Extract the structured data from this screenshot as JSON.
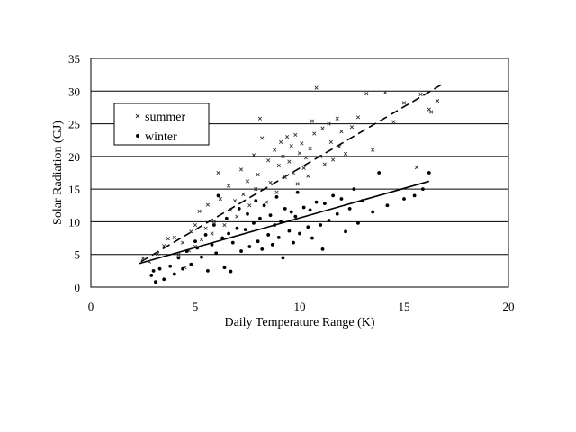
{
  "chart_data": {
    "type": "scatter",
    "xlabel": "Daily Temperature Range (K)",
    "ylabel": "Solar Radiation (GJ)",
    "xlim": [
      0,
      20
    ],
    "ylim": [
      0,
      35
    ],
    "xticks": [
      0,
      5,
      10,
      15,
      20
    ],
    "yticks": [
      0,
      5,
      10,
      15,
      20,
      25,
      30,
      35
    ],
    "grid": "horizontal",
    "legend_position": "top-left",
    "series": [
      {
        "name": "summer",
        "marker": "x",
        "color": "#333333",
        "trendline": {
          "style": "dashed",
          "x": [
            2.4,
            16.8
          ],
          "y": [
            3.9,
            31.0
          ]
        },
        "points": [
          [
            2.5,
            4.4
          ],
          [
            2.8,
            3.9
          ],
          [
            3.2,
            5.1
          ],
          [
            3.5,
            6.3
          ],
          [
            3.7,
            7.4
          ],
          [
            4.0,
            7.6
          ],
          [
            4.2,
            5.0
          ],
          [
            4.4,
            6.8
          ],
          [
            4.5,
            3.0
          ],
          [
            4.7,
            5.6
          ],
          [
            4.8,
            8.5
          ],
          [
            5.0,
            9.5
          ],
          [
            5.0,
            6.2
          ],
          [
            5.2,
            11.6
          ],
          [
            5.3,
            7.3
          ],
          [
            5.5,
            9.0
          ],
          [
            5.6,
            12.6
          ],
          [
            5.8,
            8.2
          ],
          [
            5.9,
            10.0
          ],
          [
            6.1,
            17.5
          ],
          [
            6.2,
            13.5
          ],
          [
            6.4,
            9.5
          ],
          [
            6.6,
            15.5
          ],
          [
            6.7,
            11.8
          ],
          [
            6.9,
            13.2
          ],
          [
            7.0,
            10.8
          ],
          [
            7.2,
            18.0
          ],
          [
            7.3,
            14.2
          ],
          [
            7.5,
            16.2
          ],
          [
            7.6,
            12.5
          ],
          [
            7.8,
            20.2
          ],
          [
            7.9,
            15.0
          ],
          [
            8.0,
            17.2
          ],
          [
            8.1,
            25.8
          ],
          [
            8.2,
            22.8
          ],
          [
            8.4,
            13.0
          ],
          [
            8.5,
            19.4
          ],
          [
            8.6,
            16.0
          ],
          [
            8.8,
            21.0
          ],
          [
            8.9,
            14.5
          ],
          [
            9.0,
            18.6
          ],
          [
            9.1,
            22.2
          ],
          [
            9.2,
            20.0
          ],
          [
            9.3,
            16.8
          ],
          [
            9.4,
            23.0
          ],
          [
            9.5,
            19.2
          ],
          [
            9.6,
            21.6
          ],
          [
            9.7,
            17.5
          ],
          [
            9.8,
            23.3
          ],
          [
            9.9,
            15.8
          ],
          [
            10.0,
            20.5
          ],
          [
            10.1,
            22.0
          ],
          [
            10.2,
            18.2
          ],
          [
            10.3,
            19.8
          ],
          [
            10.4,
            17.0
          ],
          [
            10.5,
            21.2
          ],
          [
            10.6,
            25.4
          ],
          [
            10.7,
            23.5
          ],
          [
            10.8,
            30.5
          ],
          [
            11.0,
            20.0
          ],
          [
            11.1,
            24.3
          ],
          [
            11.2,
            18.8
          ],
          [
            11.4,
            25.0
          ],
          [
            11.5,
            22.2
          ],
          [
            11.6,
            19.5
          ],
          [
            11.8,
            25.8
          ],
          [
            11.9,
            21.5
          ],
          [
            12.0,
            23.8
          ],
          [
            12.2,
            20.4
          ],
          [
            12.5,
            24.5
          ],
          [
            12.8,
            26.0
          ],
          [
            13.2,
            29.6
          ],
          [
            13.5,
            21.0
          ],
          [
            14.1,
            29.8
          ],
          [
            14.5,
            25.3
          ],
          [
            15.0,
            28.2
          ],
          [
            15.6,
            18.3
          ],
          [
            15.8,
            29.5
          ],
          [
            16.2,
            27.2
          ],
          [
            16.3,
            26.8
          ],
          [
            16.6,
            28.5
          ]
        ]
      },
      {
        "name": "winter",
        "marker": "dot",
        "color": "#000000",
        "trendline": {
          "style": "solid",
          "x": [
            2.3,
            16.2
          ],
          "y": [
            3.6,
            16.2
          ]
        },
        "points": [
          [
            2.9,
            1.8
          ],
          [
            3.0,
            2.5
          ],
          [
            3.1,
            0.8
          ],
          [
            3.3,
            2.8
          ],
          [
            3.5,
            1.2
          ],
          [
            3.8,
            3.2
          ],
          [
            4.0,
            2.0
          ],
          [
            4.2,
            4.5
          ],
          [
            4.4,
            2.8
          ],
          [
            4.6,
            5.5
          ],
          [
            4.8,
            3.5
          ],
          [
            5.0,
            7.0
          ],
          [
            5.1,
            6.0
          ],
          [
            5.3,
            4.6
          ],
          [
            5.5,
            8.0
          ],
          [
            5.6,
            2.5
          ],
          [
            5.8,
            6.5
          ],
          [
            5.9,
            9.5
          ],
          [
            6.0,
            5.2
          ],
          [
            6.1,
            14.0
          ],
          [
            6.3,
            7.5
          ],
          [
            6.4,
            3.0
          ],
          [
            6.5,
            10.5
          ],
          [
            6.6,
            8.2
          ],
          [
            6.7,
            2.4
          ],
          [
            6.8,
            6.8
          ],
          [
            7.0,
            9.0
          ],
          [
            7.1,
            12.0
          ],
          [
            7.2,
            5.5
          ],
          [
            7.4,
            8.8
          ],
          [
            7.5,
            11.2
          ],
          [
            7.6,
            6.2
          ],
          [
            7.8,
            9.8
          ],
          [
            7.9,
            13.2
          ],
          [
            8.0,
            7.0
          ],
          [
            8.1,
            10.5
          ],
          [
            8.2,
            5.8
          ],
          [
            8.3,
            12.5
          ],
          [
            8.5,
            8.0
          ],
          [
            8.6,
            11.0
          ],
          [
            8.7,
            6.5
          ],
          [
            8.8,
            9.5
          ],
          [
            8.9,
            13.8
          ],
          [
            9.0,
            7.6
          ],
          [
            9.1,
            10.0
          ],
          [
            9.2,
            4.5
          ],
          [
            9.3,
            12.0
          ],
          [
            9.5,
            8.6
          ],
          [
            9.6,
            11.5
          ],
          [
            9.7,
            6.8
          ],
          [
            9.8,
            10.8
          ],
          [
            9.9,
            14.5
          ],
          [
            10.0,
            8.2
          ],
          [
            10.2,
            12.2
          ],
          [
            10.4,
            9.2
          ],
          [
            10.5,
            11.8
          ],
          [
            10.6,
            7.5
          ],
          [
            10.8,
            13.0
          ],
          [
            11.0,
            9.5
          ],
          [
            11.1,
            5.8
          ],
          [
            11.2,
            12.8
          ],
          [
            11.4,
            10.2
          ],
          [
            11.6,
            14.0
          ],
          [
            11.8,
            11.2
          ],
          [
            12.0,
            13.5
          ],
          [
            12.2,
            8.5
          ],
          [
            12.4,
            12.0
          ],
          [
            12.6,
            15.0
          ],
          [
            12.8,
            9.8
          ],
          [
            13.0,
            13.2
          ],
          [
            13.5,
            11.5
          ],
          [
            13.8,
            17.5
          ],
          [
            14.2,
            12.5
          ],
          [
            15.0,
            13.5
          ],
          [
            15.5,
            14.0
          ],
          [
            15.9,
            15.0
          ],
          [
            16.2,
            17.5
          ]
        ]
      }
    ]
  }
}
